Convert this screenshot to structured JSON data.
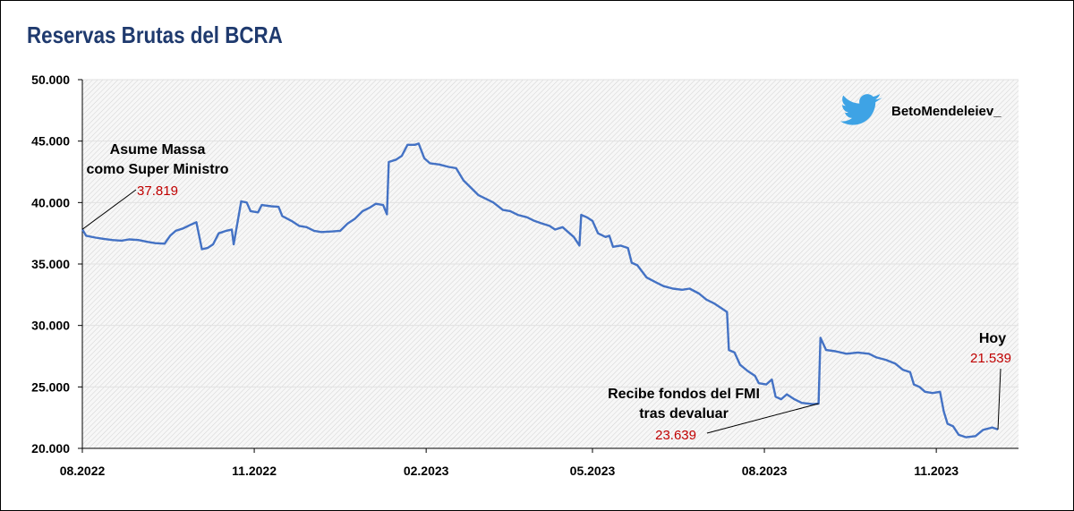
{
  "chart_data": {
    "type": "line",
    "title": "Reservas Brutas del BCRA",
    "watermark": "BetoMendeleiev_",
    "line_color": "#4472c4",
    "ylim": [
      20000,
      50000
    ],
    "y_ticks": [
      {
        "value": 20000,
        "label": "20.000"
      },
      {
        "value": 25000,
        "label": "25.000"
      },
      {
        "value": 30000,
        "label": "30.000"
      },
      {
        "value": 35000,
        "label": "35.000"
      },
      {
        "value": 40000,
        "label": "40.000"
      },
      {
        "value": 45000,
        "label": "45.000"
      },
      {
        "value": 50000,
        "label": "50.000"
      }
    ],
    "xlim": [
      "2022-08-01",
      "2023-12-15"
    ],
    "x_ticks": [
      {
        "date": "2022-08-01",
        "label": "08.2022"
      },
      {
        "date": "2022-11-01",
        "label": "11.2022"
      },
      {
        "date": "2023-02-01",
        "label": "02.2023"
      },
      {
        "date": "2023-05-01",
        "label": "05.2023"
      },
      {
        "date": "2023-08-01",
        "label": "08.2023"
      },
      {
        "date": "2023-11-01",
        "label": "11.2023"
      }
    ],
    "grid": true,
    "series": [
      {
        "points": [
          [
            "2022-08-01",
            37819
          ],
          [
            "2022-08-03",
            37300
          ],
          [
            "2022-08-08",
            37150
          ],
          [
            "2022-08-12",
            37050
          ],
          [
            "2022-08-17",
            36950
          ],
          [
            "2022-08-22",
            36900
          ],
          [
            "2022-08-26",
            37000
          ],
          [
            "2022-08-31",
            36950
          ],
          [
            "2022-09-05",
            36800
          ],
          [
            "2022-09-09",
            36700
          ],
          [
            "2022-09-14",
            36650
          ],
          [
            "2022-09-17",
            37300
          ],
          [
            "2022-09-20",
            37700
          ],
          [
            "2022-09-24",
            37900
          ],
          [
            "2022-09-28",
            38200
          ],
          [
            "2022-10-01",
            38400
          ],
          [
            "2022-10-04",
            36200
          ],
          [
            "2022-10-07",
            36300
          ],
          [
            "2022-10-10",
            36600
          ],
          [
            "2022-10-13",
            37500
          ],
          [
            "2022-10-17",
            37700
          ],
          [
            "2022-10-20",
            37800
          ],
          [
            "2022-10-21",
            36600
          ],
          [
            "2022-10-25",
            40100
          ],
          [
            "2022-10-28",
            40000
          ],
          [
            "2022-10-30",
            39300
          ],
          [
            "2022-11-03",
            39200
          ],
          [
            "2022-11-05",
            39800
          ],
          [
            "2022-11-10",
            39700
          ],
          [
            "2022-11-14",
            39650
          ],
          [
            "2022-11-16",
            38900
          ],
          [
            "2022-11-21",
            38500
          ],
          [
            "2022-11-25",
            38100
          ],
          [
            "2022-11-29",
            38000
          ],
          [
            "2022-12-03",
            37700
          ],
          [
            "2022-12-07",
            37600
          ],
          [
            "2022-12-13",
            37650
          ],
          [
            "2022-12-17",
            37700
          ],
          [
            "2022-12-21",
            38300
          ],
          [
            "2022-12-25",
            38700
          ],
          [
            "2022-12-29",
            39300
          ],
          [
            "2023-01-02",
            39600
          ],
          [
            "2023-01-05",
            39900
          ],
          [
            "2023-01-09",
            39800
          ],
          [
            "2023-01-11",
            39050
          ],
          [
            "2023-01-12",
            43300
          ],
          [
            "2023-01-16",
            43500
          ],
          [
            "2023-01-19",
            43800
          ],
          [
            "2023-01-22",
            44700
          ],
          [
            "2023-01-26",
            44700
          ],
          [
            "2023-01-28",
            44800
          ],
          [
            "2023-01-31",
            43600
          ],
          [
            "2023-02-03",
            43200
          ],
          [
            "2023-02-08",
            43100
          ],
          [
            "2023-02-13",
            42900
          ],
          [
            "2023-02-17",
            42800
          ],
          [
            "2023-02-21",
            41800
          ],
          [
            "2023-02-25",
            41200
          ],
          [
            "2023-03-01",
            40600
          ],
          [
            "2023-03-05",
            40300
          ],
          [
            "2023-03-09",
            40000
          ],
          [
            "2023-03-14",
            39400
          ],
          [
            "2023-03-18",
            39300
          ],
          [
            "2023-03-22",
            39000
          ],
          [
            "2023-03-27",
            38800
          ],
          [
            "2023-03-31",
            38500
          ],
          [
            "2023-04-04",
            38300
          ],
          [
            "2023-04-08",
            38100
          ],
          [
            "2023-04-11",
            37800
          ],
          [
            "2023-04-15",
            38000
          ],
          [
            "2023-04-18",
            37600
          ],
          [
            "2023-04-21",
            37200
          ],
          [
            "2023-04-24",
            36500
          ],
          [
            "2023-04-25",
            39000
          ],
          [
            "2023-04-28",
            38800
          ],
          [
            "2023-05-01",
            38500
          ],
          [
            "2023-05-04",
            37500
          ],
          [
            "2023-05-08",
            37200
          ],
          [
            "2023-05-10",
            37300
          ],
          [
            "2023-05-12",
            36400
          ],
          [
            "2023-05-16",
            36500
          ],
          [
            "2023-05-20",
            36300
          ],
          [
            "2023-05-22",
            35100
          ],
          [
            "2023-05-25",
            34900
          ],
          [
            "2023-05-30",
            33900
          ],
          [
            "2023-06-04",
            33500
          ],
          [
            "2023-06-08",
            33200
          ],
          [
            "2023-06-13",
            33000
          ],
          [
            "2023-06-18",
            32900
          ],
          [
            "2023-06-22",
            33000
          ],
          [
            "2023-06-27",
            32600
          ],
          [
            "2023-07-01",
            32100
          ],
          [
            "2023-07-05",
            31800
          ],
          [
            "2023-07-09",
            31400
          ],
          [
            "2023-07-12",
            31100
          ],
          [
            "2023-07-13",
            28000
          ],
          [
            "2023-07-16",
            27800
          ],
          [
            "2023-07-19",
            26800
          ],
          [
            "2023-07-23",
            26300
          ],
          [
            "2023-07-27",
            25900
          ],
          [
            "2023-07-29",
            25300
          ],
          [
            "2023-08-02",
            25200
          ],
          [
            "2023-08-05",
            25600
          ],
          [
            "2023-08-07",
            24200
          ],
          [
            "2023-08-10",
            24000
          ],
          [
            "2023-08-13",
            24400
          ],
          [
            "2023-08-17",
            24000
          ],
          [
            "2023-08-21",
            23700
          ],
          [
            "2023-08-27",
            23600
          ],
          [
            "2023-08-30",
            23639
          ],
          [
            "2023-08-31",
            29000
          ],
          [
            "2023-09-03",
            28000
          ],
          [
            "2023-09-08",
            27900
          ],
          [
            "2023-09-14",
            27700
          ],
          [
            "2023-09-20",
            27800
          ],
          [
            "2023-09-26",
            27700
          ],
          [
            "2023-09-30",
            27400
          ],
          [
            "2023-10-05",
            27200
          ],
          [
            "2023-10-10",
            26900
          ],
          [
            "2023-10-14",
            26400
          ],
          [
            "2023-10-18",
            26200
          ],
          [
            "2023-10-20",
            25200
          ],
          [
            "2023-10-23",
            25000
          ],
          [
            "2023-10-26",
            24600
          ],
          [
            "2023-10-30",
            24500
          ],
          [
            "2023-11-03",
            24600
          ],
          [
            "2023-11-05",
            23000
          ],
          [
            "2023-11-07",
            22000
          ],
          [
            "2023-11-10",
            21800
          ],
          [
            "2023-11-13",
            21100
          ],
          [
            "2023-11-17",
            20900
          ],
          [
            "2023-11-22",
            21000
          ],
          [
            "2023-11-26",
            21500
          ],
          [
            "2023-12-01",
            21700
          ],
          [
            "2023-12-04",
            21539
          ]
        ]
      }
    ],
    "annotations": [
      {
        "text_lines": [
          "Asume Massa",
          "como Super Ministro"
        ],
        "value_label": "37.819",
        "date": "2022-08-01",
        "value": 37819
      },
      {
        "text_lines": [
          "Recibe fondos del FMI",
          "tras devaluar"
        ],
        "value_label": "23.639",
        "date": "2023-08-30",
        "value": 23639
      },
      {
        "text_lines": [
          "Hoy"
        ],
        "value_label": "21.539",
        "date": "2023-12-04",
        "value": 21539
      }
    ]
  }
}
